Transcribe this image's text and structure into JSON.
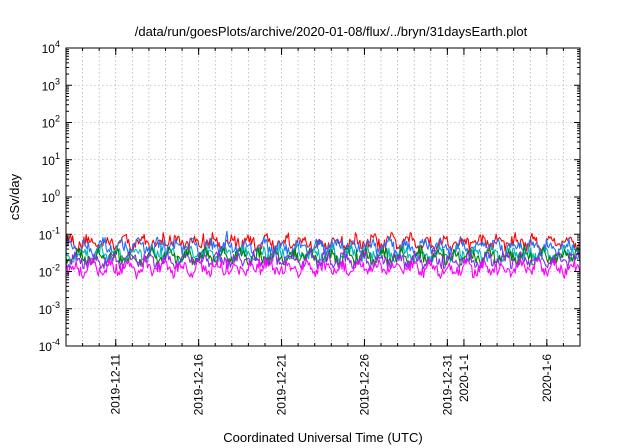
{
  "chart_data": {
    "type": "line",
    "title": "/data/run/goesPlots/archive/2020-01-08/flux/../bryn/31daysEarth.plot",
    "xlabel": "Coordinated Universal Time (UTC)",
    "ylabel": "cSv/day",
    "yscale": "log",
    "ylim": [
      0.0001,
      10000
    ],
    "yticks": [
      {
        "base": "10",
        "exp": "-4",
        "value": 0.0001
      },
      {
        "base": "10",
        "exp": "-3",
        "value": 0.001
      },
      {
        "base": "10",
        "exp": "-2",
        "value": 0.01
      },
      {
        "base": "10",
        "exp": "-1",
        "value": 0.1
      },
      {
        "base": "10",
        "exp": "0",
        "value": 1
      },
      {
        "base": "10",
        "exp": "1",
        "value": 10
      },
      {
        "base": "10",
        "exp": "2",
        "value": 100
      },
      {
        "base": "10",
        "exp": "3",
        "value": 1000
      },
      {
        "base": "10",
        "exp": "4",
        "value": 10000
      }
    ],
    "xlim": [
      "2019-12-08",
      "2020-01-08"
    ],
    "xticks": [
      {
        "date": "2019-12-11",
        "label": "2019-12-11"
      },
      {
        "date": "2019-12-16",
        "label": "2019-12-16"
      },
      {
        "date": "2019-12-21",
        "label": "2019-12-21"
      },
      {
        "date": "2019-12-26",
        "label": "2019-12-26"
      },
      {
        "date": "2019-12-31",
        "label": "2019-12-31"
      },
      {
        "date": "2020-01-01",
        "label": "2020-1-1"
      },
      {
        "date": "2020-01-06",
        "label": "2020-1-6"
      }
    ],
    "grid": true,
    "legend": "none",
    "series": [
      {
        "color": "#ff0000",
        "typical": 0.06,
        "min": 0.035,
        "max": 0.11
      },
      {
        "color": "#1f6fff",
        "typical": 0.045,
        "min": 0.025,
        "max": 0.12
      },
      {
        "color": "#00b8b8",
        "typical": 0.028,
        "min": 0.018,
        "max": 0.06
      },
      {
        "color": "#008000",
        "typical": 0.024,
        "min": 0.015,
        "max": 0.05
      },
      {
        "color": "#8a2be2",
        "typical": 0.02,
        "min": 0.012,
        "max": 0.04
      },
      {
        "color": "#ff00ff",
        "typical": 0.012,
        "min": 0.005,
        "max": 0.035
      }
    ]
  }
}
